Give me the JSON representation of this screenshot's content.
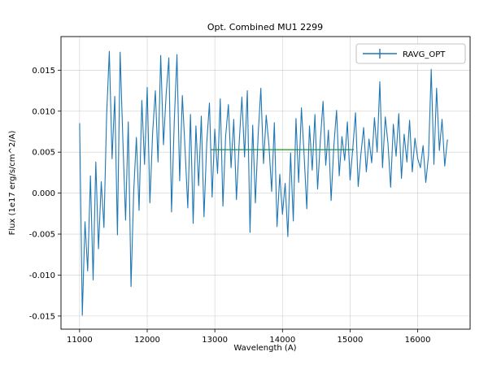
{
  "window": {
    "background": "#ffffff"
  },
  "chart_data": {
    "type": "line",
    "title": "Opt. Combined MU1 2299",
    "xlabel": "Wavelength (A)",
    "ylabel": "Flux (1e17 erg/s/cm^2/A)",
    "xlim": [
      10725,
      16775
    ],
    "ylim": [
      -0.0166,
      0.0191
    ],
    "grid": true,
    "legend": {
      "label": "RAVG_OPT",
      "position": "upper right",
      "marker": "plus-errorbar"
    },
    "line_color": "#1f77b4",
    "mean_line_color": "#2ca02c",
    "xticks": [
      {
        "v": 11000,
        "label": "11000"
      },
      {
        "v": 12000,
        "label": "12000"
      },
      {
        "v": 13000,
        "label": "13000"
      },
      {
        "v": 14000,
        "label": "14000"
      },
      {
        "v": 15000,
        "label": "15000"
      },
      {
        "v": 16000,
        "label": "16000"
      }
    ],
    "yticks": [
      {
        "v": -0.015,
        "label": "-0.015"
      },
      {
        "v": -0.01,
        "label": "-0.010"
      },
      {
        "v": -0.005,
        "label": "-0.005"
      },
      {
        "v": 0.0,
        "label": "0.000"
      },
      {
        "v": 0.005,
        "label": "0.005"
      },
      {
        "v": 0.01,
        "label": "0.010"
      },
      {
        "v": 0.015,
        "label": "0.015"
      }
    ],
    "series": [
      {
        "name": "RAVG_OPT",
        "color": "#1f77b4",
        "x_start": 11000,
        "x_step": 40,
        "y": [
          0.0085,
          -0.0149,
          -0.0035,
          -0.0095,
          0.0021,
          -0.0106,
          0.0038,
          -0.0068,
          0.0014,
          -0.0042,
          0.0095,
          0.0173,
          0.0042,
          0.0118,
          -0.0051,
          0.0172,
          0.0064,
          -0.0033,
          0.0087,
          -0.0114,
          0.0002,
          0.0068,
          -0.0021,
          0.0113,
          0.0035,
          0.0129,
          -0.0012,
          0.0074,
          0.0125,
          0.0038,
          0.0168,
          0.0059,
          0.0121,
          0.0165,
          -0.0023,
          0.0088,
          0.0169,
          0.0015,
          0.0119,
          0.0052,
          -0.0018,
          0.0096,
          -0.0037,
          0.0082,
          0.0009,
          0.0094,
          -0.0029,
          0.0061,
          0.011,
          -0.0005,
          0.0078,
          0.0024,
          0.0115,
          -0.0016,
          0.0069,
          0.0108,
          0.0031,
          0.009,
          -0.0008,
          0.0062,
          0.0117,
          0.0044,
          0.0125,
          -0.0048,
          0.0083,
          -0.0012,
          0.0071,
          0.0128,
          0.0036,
          0.0095,
          0.0058,
          0.0002,
          0.0086,
          -0.0041,
          0.0023,
          -0.0026,
          0.0012,
          -0.0053,
          0.0049,
          -0.0034,
          0.0091,
          0.0013,
          0.0104,
          0.0047,
          -0.0019,
          0.0082,
          0.0028,
          0.0096,
          0.0005,
          0.0063,
          0.0112,
          0.0034,
          0.0077,
          -0.0009,
          0.0058,
          0.0101,
          0.0021,
          0.0069,
          0.004,
          0.0087,
          0.0016,
          0.0055,
          0.0098,
          0.0008,
          0.0047,
          0.008,
          0.0026,
          0.0066,
          0.0037,
          0.0092,
          0.005,
          0.0136,
          0.0031,
          0.0093,
          0.0061,
          0.0007,
          0.0084,
          0.0045,
          0.0097,
          0.0018,
          0.0072,
          0.0038,
          0.0089,
          0.0026,
          0.0067,
          0.0042,
          0.0031,
          0.0058,
          0.0013,
          0.0046,
          0.0151,
          0.0035,
          0.0128,
          0.0052,
          0.009,
          0.0033,
          0.0065
        ]
      },
      {
        "name": "mean-line",
        "color": "#2ca02c",
        "x": [
          12950,
          15050
        ],
        "y": [
          0.0053,
          0.0053
        ]
      }
    ]
  }
}
